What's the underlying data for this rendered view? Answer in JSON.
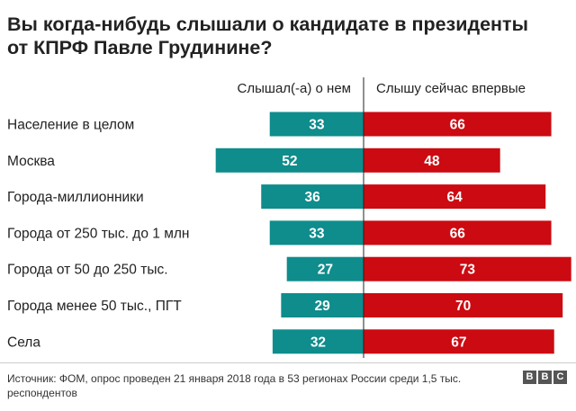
{
  "title": "Вы когда-нибудь слышали о кандидате в президенты от КПРФ Павле Грудинине?",
  "chart_data": {
    "type": "bar",
    "orientation": "horizontal-diverging",
    "categories": [
      "Население в целом",
      "Москва",
      "Города-миллионники",
      "Города от 250 тыс. до 1 млн",
      "Города от 50 до 250 тыс.",
      "Города менее 50 тыс., ПГТ",
      "Села"
    ],
    "series": [
      {
        "name": "Слышал(-а) о нем",
        "values": [
          33,
          52,
          36,
          33,
          27,
          29,
          32
        ],
        "color": "#0f8c8c",
        "direction": "left"
      },
      {
        "name": "Слышу сейчас впервые",
        "values": [
          66,
          48,
          64,
          66,
          73,
          70,
          67
        ],
        "color": "#cc0a11",
        "direction": "right"
      }
    ],
    "legend_position": "top"
  },
  "footer": {
    "source": "Источник: ФОМ, опрос проведен 21 января 2018 года в 53 регионах России среди 1,5 тыс. респондентов",
    "logo_letters": [
      "B",
      "B",
      "C"
    ]
  }
}
